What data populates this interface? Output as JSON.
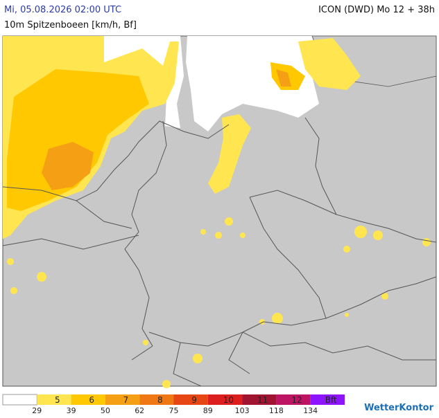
{
  "header": {
    "title": "Mi, 05.08.2026 02:00 UTC",
    "model": "ICON (DWD) Mo 12 + 38h",
    "subtitle": "10m Spitzenboeen [km/h, Bf]"
  },
  "legend": {
    "colors": [
      "#ffffff",
      "#ffe650",
      "#ffc800",
      "#f5a014",
      "#f07814",
      "#e64614",
      "#dc1e1e",
      "#a01432",
      "#be1464",
      "#8c14ff"
    ],
    "labels": [
      "5",
      "6",
      "7",
      "8",
      "9",
      "10",
      "11",
      "12",
      "Bft"
    ],
    "kmh": [
      29,
      39,
      50,
      62,
      75,
      89,
      103,
      118,
      134
    ]
  },
  "brand": "WetterKontor"
}
